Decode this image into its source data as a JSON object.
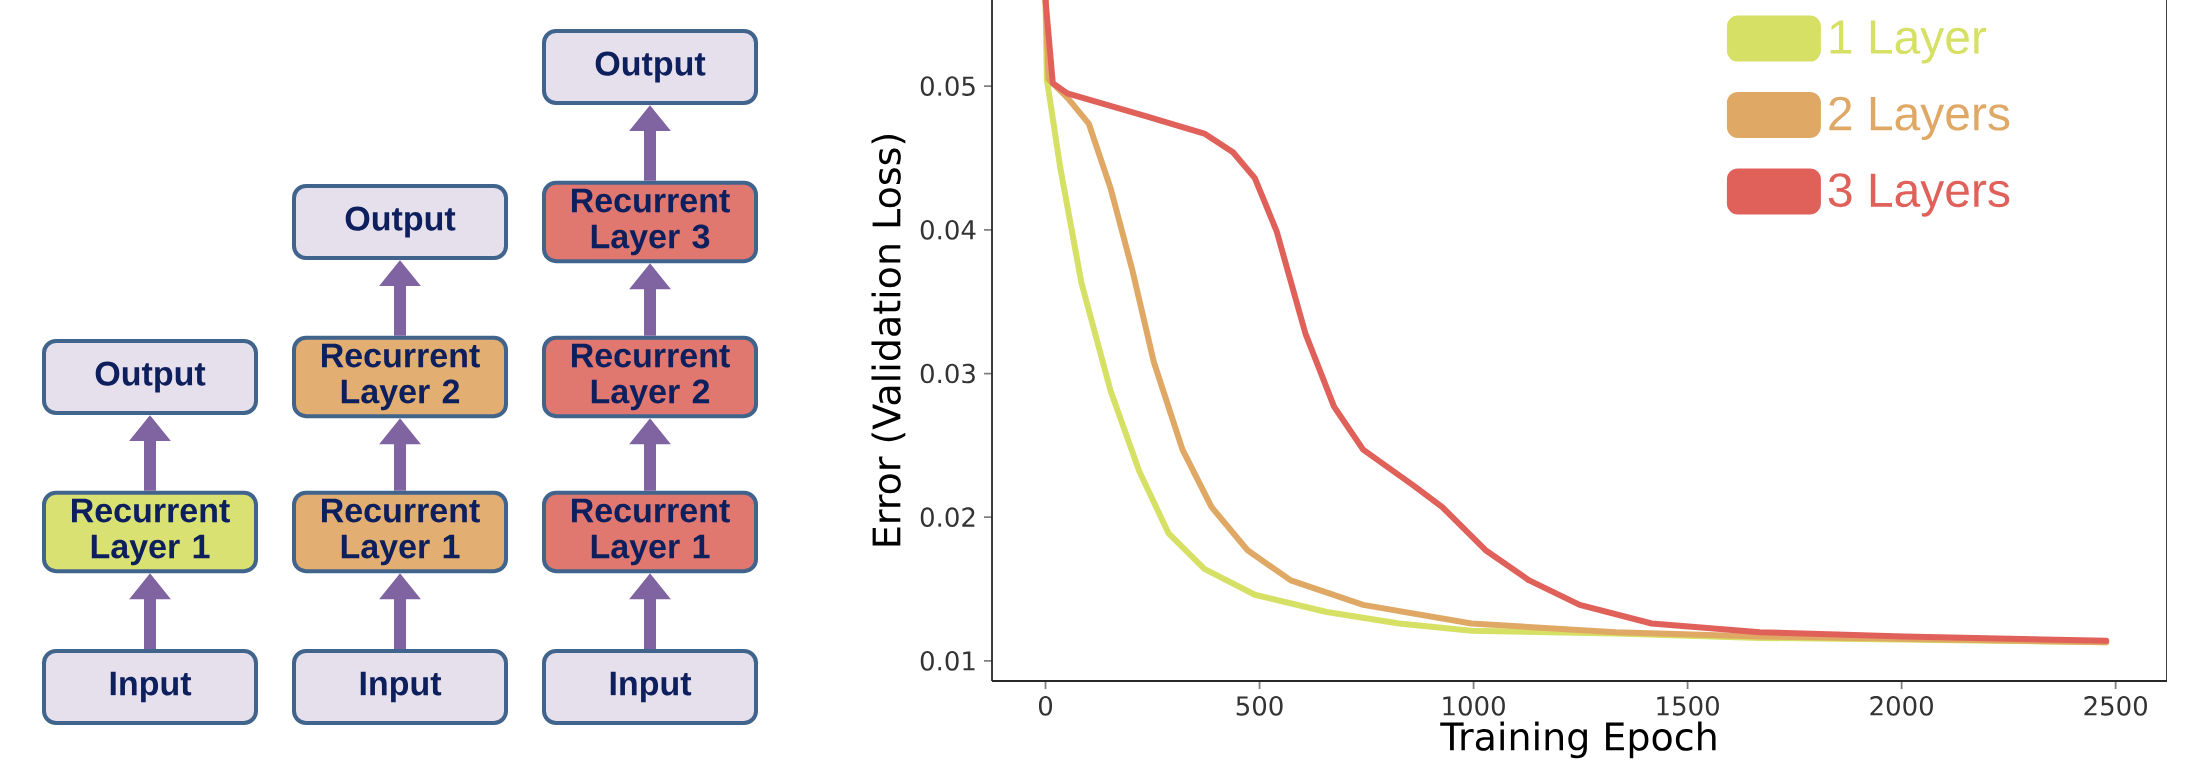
{
  "chart_data": [
    {
      "type": "other",
      "categories": [
        "Output",
        "Recurrent Layer 1",
        "Input"
      ],
      "colors": [
        "#e6e0ec",
        "#d9e173",
        "#e6e0ec"
      ]
    },
    {
      "type": "other",
      "categories": [
        "Output",
        "Recurrent Layer 2",
        "Recurrent Layer 1",
        "Input"
      ],
      "colors": [
        "#e6e0ec",
        "#e2ae71",
        "#e2ae71",
        "#e6e0ec"
      ]
    },
    {
      "type": "other",
      "categories": [
        "Output",
        "Recurrent Layer 3",
        "Recurrent Layer 2",
        "Recurrent Layer 1",
        "Input"
      ],
      "colors": [
        "#e6e0ec",
        "#e07870",
        "#e07870",
        "#e07870",
        "#e6e0ec"
      ]
    },
    {
      "type": "line",
      "xlabel": "Training Epoch",
      "ylabel": "Error (Validation Loss)",
      "xlim": [
        -125,
        2620
      ],
      "ylim": [
        0.0086,
        0.056
      ],
      "xticks": [
        0,
        500,
        1000,
        1500,
        2000,
        2500
      ],
      "yticks": [
        0.01,
        0.02,
        0.03,
        0.04,
        0.05
      ],
      "legend": "top right",
      "series": [
        {
          "name": "1 Layer",
          "color": "#d6e065",
          "x": [
            0,
            3,
            34,
            84,
            152,
            219,
            287,
            371,
            489,
            657,
            826,
            995,
            1332,
            1669,
            2478
          ],
          "values": [
            0.056,
            0.0505,
            0.0444,
            0.0363,
            0.0288,
            0.0232,
            0.0189,
            0.0164,
            0.0146,
            0.0134,
            0.0126,
            0.0121,
            0.0119,
            0.0116,
            0.0113
          ]
        },
        {
          "name": "2 Layers",
          "color": "#e0a865",
          "x": [
            0,
            7,
            51,
            101,
            152,
            202,
            253,
            320,
            388,
            472,
            573,
            742,
            995,
            1332,
            1669,
            2478
          ],
          "values": [
            0.056,
            0.0505,
            0.0492,
            0.0474,
            0.0429,
            0.0373,
            0.0308,
            0.0247,
            0.0207,
            0.0177,
            0.0156,
            0.0139,
            0.0126,
            0.012,
            0.0117,
            0.0113
          ]
        },
        {
          "name": "3 Layers",
          "color": "#e0605a",
          "x": [
            0,
            17,
            51,
            236,
            371,
            438,
            489,
            540,
            607,
            674,
            742,
            860,
            927,
            1028,
            1130,
            1248,
            1416,
            1669,
            2006,
            2478
          ],
          "values": [
            0.056,
            0.0502,
            0.0495,
            0.0479,
            0.0467,
            0.0454,
            0.0436,
            0.0399,
            0.0328,
            0.0277,
            0.0247,
            0.0222,
            0.0207,
            0.0177,
            0.0156,
            0.0139,
            0.0126,
            0.012,
            0.0117,
            0.0114
          ]
        }
      ]
    }
  ]
}
